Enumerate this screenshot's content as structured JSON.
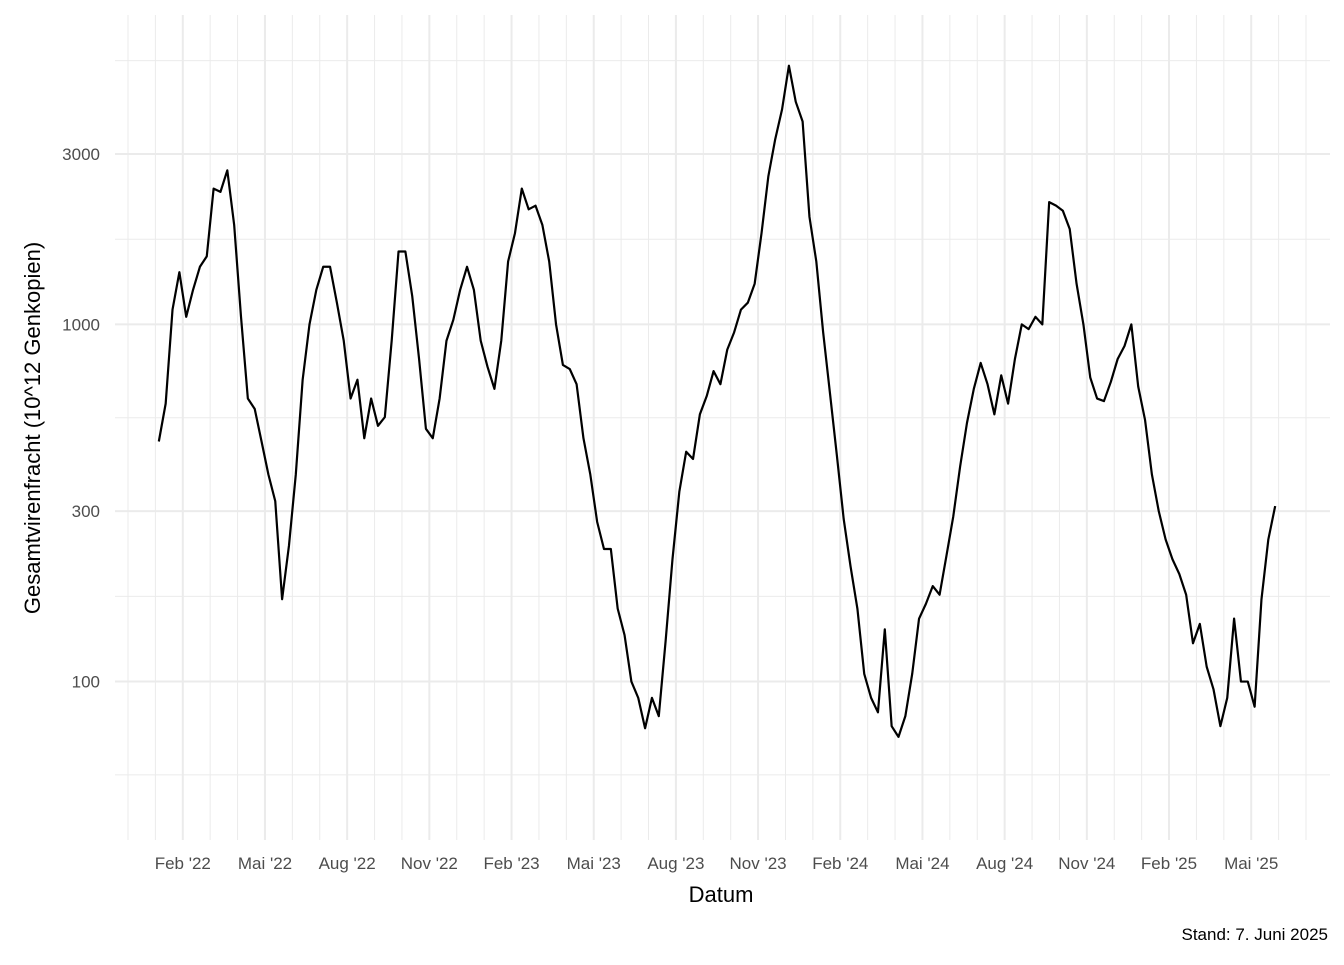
{
  "chart_data": {
    "type": "line",
    "x_label": "Datum",
    "y_label": "Gesamtvirenfracht (10^12 Genkopien)",
    "caption": "Stand: 7. Juni 2025",
    "yscale": "log",
    "grid": true,
    "color": "#000000",
    "xlim": [
      "2021-12",
      "2025-07"
    ],
    "xticks": [
      {
        "value": "2022-02",
        "label": "Feb '22"
      },
      {
        "value": "2022-05",
        "label": "Mai '22"
      },
      {
        "value": "2022-08",
        "label": "Aug '22"
      },
      {
        "value": "2022-11",
        "label": "Nov '22"
      },
      {
        "value": "2023-02",
        "label": "Feb '23"
      },
      {
        "value": "2023-05",
        "label": "Mai '23"
      },
      {
        "value": "2023-08",
        "label": "Aug '23"
      },
      {
        "value": "2023-11",
        "label": "Nov '23"
      },
      {
        "value": "2024-02",
        "label": "Feb '24"
      },
      {
        "value": "2024-05",
        "label": "Mai '24"
      },
      {
        "value": "2024-08",
        "label": "Aug '24"
      },
      {
        "value": "2024-11",
        "label": "Nov '24"
      },
      {
        "value": "2025-02",
        "label": "Feb '25"
      },
      {
        "value": "2025-05",
        "label": "Mai '25"
      }
    ],
    "ylim": [
      36,
      7350
    ],
    "yticks": [
      100,
      300,
      1000,
      3000
    ],
    "x": [
      "2022-01",
      "2022-01",
      "2022-01",
      "2022-01",
      "2022-02",
      "2022-02",
      "2022-02",
      "2022-02",
      "2022-03",
      "2022-03",
      "2022-03",
      "2022-03",
      "2022-04",
      "2022-04",
      "2022-04",
      "2022-04",
      "2022-05",
      "2022-05",
      "2022-05",
      "2022-05",
      "2022-06",
      "2022-06",
      "2022-06",
      "2022-06",
      "2022-07",
      "2022-07",
      "2022-07",
      "2022-07",
      "2022-08",
      "2022-08",
      "2022-08",
      "2022-08",
      "2022-09",
      "2022-09",
      "2022-09",
      "2022-09",
      "2022-10",
      "2022-10",
      "2022-10",
      "2022-10",
      "2022-11",
      "2022-11",
      "2022-11",
      "2022-11",
      "2022-12",
      "2022-12",
      "2022-12",
      "2022-12",
      "2023-01",
      "2023-01",
      "2023-01",
      "2023-01",
      "2023-02",
      "2023-02",
      "2023-02",
      "2023-02",
      "2023-03",
      "2023-03",
      "2023-03",
      "2023-03",
      "2023-04",
      "2023-04",
      "2023-04",
      "2023-04",
      "2023-05",
      "2023-05",
      "2023-05",
      "2023-05",
      "2023-06",
      "2023-06",
      "2023-06",
      "2023-06",
      "2023-07",
      "2023-07",
      "2023-07",
      "2023-07",
      "2023-08",
      "2023-08",
      "2023-08",
      "2023-08",
      "2023-09",
      "2023-09",
      "2023-09",
      "2023-09",
      "2023-10",
      "2023-10",
      "2023-10",
      "2023-10",
      "2023-11",
      "2023-11",
      "2023-11",
      "2023-11",
      "2023-12",
      "2023-12",
      "2023-12",
      "2023-12",
      "2024-01",
      "2024-01",
      "2024-01",
      "2024-01",
      "2024-02",
      "2024-02",
      "2024-02",
      "2024-02",
      "2024-03",
      "2024-03",
      "2024-03",
      "2024-03",
      "2024-04",
      "2024-04",
      "2024-04",
      "2024-04",
      "2024-05",
      "2024-05",
      "2024-05",
      "2024-05",
      "2024-06",
      "2024-06",
      "2024-06",
      "2024-06",
      "2024-07",
      "2024-07",
      "2024-07",
      "2024-07",
      "2024-08",
      "2024-08",
      "2024-08",
      "2024-08",
      "2024-09",
      "2024-09",
      "2024-09",
      "2024-09",
      "2024-10",
      "2024-10",
      "2024-10",
      "2024-10",
      "2024-11",
      "2024-11",
      "2024-11",
      "2024-11",
      "2024-12",
      "2024-12",
      "2024-12",
      "2024-12",
      "2025-01",
      "2025-01",
      "2025-01",
      "2025-01",
      "2025-02",
      "2025-02",
      "2025-02",
      "2025-02",
      "2025-03",
      "2025-03",
      "2025-03",
      "2025-03",
      "2025-04",
      "2025-04",
      "2025-04",
      "2025-04",
      "2025-05",
      "2025-05",
      "2025-05",
      "2025-05"
    ],
    "values": [
      470,
      600,
      1100,
      1400,
      1050,
      1250,
      1450,
      1550,
      2400,
      2350,
      2700,
      1900,
      1050,
      620,
      580,
      470,
      380,
      320,
      170,
      240,
      380,
      700,
      1000,
      1250,
      1450,
      1450,
      1150,
      900,
      620,
      700,
      480,
      620,
      520,
      550,
      900,
      1600,
      1600,
      1200,
      800,
      510,
      480,
      620,
      900,
      1030,
      1250,
      1450,
      1250,
      900,
      760,
      660,
      900,
      1500,
      1800,
      2400,
      2100,
      2150,
      1900,
      1500,
      1000,
      770,
      750,
      680,
      480,
      380,
      280,
      235,
      235,
      160,
      135,
      100,
      90,
      74,
      90,
      80,
      130,
      220,
      340,
      440,
      420,
      560,
      630,
      740,
      680,
      850,
      950,
      1100,
      1150,
      1300,
      1800,
      2600,
      3300,
      4000,
      5300,
      4200,
      3700,
      2000,
      1500,
      950,
      640,
      430,
      285,
      210,
      160,
      105,
      90,
      82,
      140,
      75,
      70,
      80,
      105,
      150,
      165,
      185,
      175,
      225,
      290,
      400,
      530,
      660,
      780,
      680,
      560,
      720,
      600,
      800,
      1000,
      970,
      1050,
      1000,
      2200,
      2150,
      2080,
      1850,
      1300,
      1000,
      710,
      620,
      610,
      690,
      800,
      870,
      1000,
      670,
      540,
      380,
      300,
      250,
      220,
      200,
      175,
      128,
      145,
      110,
      95,
      75,
      90,
      150,
      100,
      100,
      85,
      170,
      250,
      310
    ]
  }
}
